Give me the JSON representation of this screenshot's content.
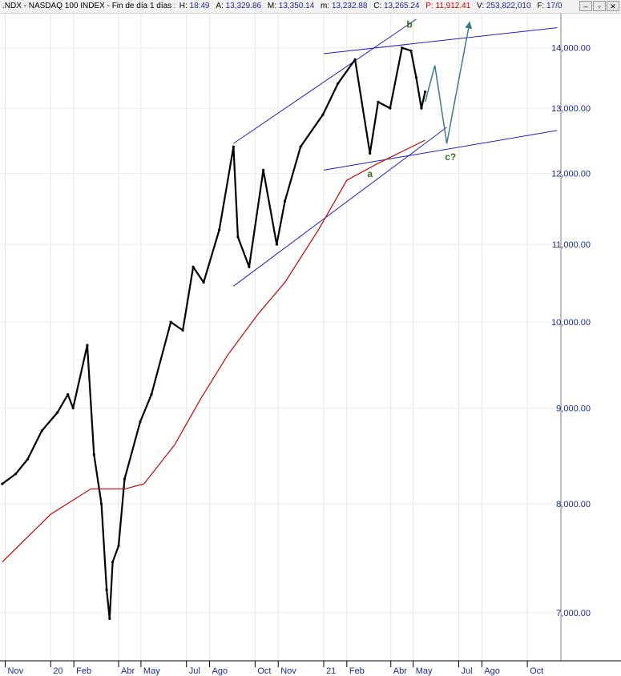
{
  "header": {
    "title": ".NDX - NASDAQ 100 INDEX - Fin de día 1 días",
    "h_label": "H:",
    "h_value": "18:49",
    "a_label": "A:",
    "a_value": "13,329.86",
    "m1_label": "M:",
    "m1_value": "13,350.14",
    "m2_label": "m:",
    "m2_value": "13,232.88",
    "c_label": "C:",
    "c_value": "13,265.24",
    "p_label": "P:",
    "p_value": "11,912.41",
    "v_label": "V:",
    "v_value": "253,822,010",
    "f_label": "F:",
    "f_value": "17/0",
    "btn_min": "–",
    "btn_max": "▫",
    "btn_close": "✕"
  },
  "colors": {
    "price": "#000000",
    "moving_average": "#cc0000",
    "channel": "#1f1fc8",
    "projection": "#3d7a86",
    "labels": "#1a2a9c",
    "annotation": "#3b6b1e"
  },
  "chart_data": {
    "type": "line",
    "title": "NASDAQ 100 INDEX",
    "xlabel": "",
    "ylabel": "",
    "y_scale": "log",
    "ylim": [
      6600,
      14600
    ],
    "y_ticks": [
      "7,000.00",
      "8,000.00",
      "9,000.00",
      "10,000.00",
      "11,000.00",
      "12,000.00",
      "13,000.00",
      "14,000.00"
    ],
    "y_tick_values": [
      7000,
      8000,
      9000,
      10000,
      11000,
      12000,
      13000,
      14000
    ],
    "x_ticks": [
      "Nov",
      "20",
      "Feb",
      "Abr",
      "May",
      "Jul",
      "Ago",
      "Oct",
      "Nov",
      "21",
      "Feb",
      "Abr",
      "May",
      "Jul",
      "Ago",
      "Oct"
    ],
    "x_tick_dates": [
      "2019-11-01",
      "2020-01-01",
      "2020-02-01",
      "2020-04-01",
      "2020-05-01",
      "2020-07-01",
      "2020-08-01",
      "2020-10-01",
      "2020-11-01",
      "2021-01-01",
      "2021-02-01",
      "2021-04-01",
      "2021-05-01",
      "2021-07-01",
      "2021-08-01",
      "2021-10-01"
    ],
    "x_range": [
      "2019-10-25",
      "2021-11-15"
    ],
    "series": [
      {
        "name": "Price",
        "kind": "close",
        "points": [
          [
            "2019-10-28",
            8200
          ],
          [
            "2019-11-15",
            8300
          ],
          [
            "2019-12-01",
            8450
          ],
          [
            "2019-12-20",
            8750
          ],
          [
            "2020-01-10",
            8950
          ],
          [
            "2020-01-24",
            9150
          ],
          [
            "2020-01-31",
            9000
          ],
          [
            "2020-02-19",
            9720
          ],
          [
            "2020-02-28",
            8500
          ],
          [
            "2020-03-09",
            8000
          ],
          [
            "2020-03-16",
            7200
          ],
          [
            "2020-03-20",
            6950
          ],
          [
            "2020-03-24",
            7450
          ],
          [
            "2020-04-01",
            7600
          ],
          [
            "2020-04-09",
            8250
          ],
          [
            "2020-04-30",
            8850
          ],
          [
            "2020-05-15",
            9150
          ],
          [
            "2020-06-10",
            10000
          ],
          [
            "2020-06-26",
            9900
          ],
          [
            "2020-07-10",
            10700
          ],
          [
            "2020-07-24",
            10500
          ],
          [
            "2020-08-14",
            11200
          ],
          [
            "2020-09-02",
            12400
          ],
          [
            "2020-09-08",
            11100
          ],
          [
            "2020-09-23",
            10700
          ],
          [
            "2020-10-12",
            12050
          ],
          [
            "2020-10-30",
            11000
          ],
          [
            "2020-11-10",
            11600
          ],
          [
            "2020-12-01",
            12400
          ],
          [
            "2020-12-31",
            12900
          ],
          [
            "2021-01-20",
            13400
          ],
          [
            "2021-02-12",
            13800
          ],
          [
            "2021-03-04",
            12300
          ],
          [
            "2021-03-15",
            13100
          ],
          [
            "2021-03-31",
            13000
          ],
          [
            "2021-04-16",
            14000
          ],
          [
            "2021-04-28",
            13950
          ],
          [
            "2021-05-05",
            13500
          ],
          [
            "2021-05-12",
            13000
          ],
          [
            "2021-05-17",
            13265
          ]
        ]
      },
      {
        "name": "Moving average",
        "kind": "ma",
        "points": [
          [
            "2019-10-28",
            7450
          ],
          [
            "2020-01-01",
            7900
          ],
          [
            "2020-02-24",
            8150
          ],
          [
            "2020-04-10",
            8150
          ],
          [
            "2020-05-05",
            8200
          ],
          [
            "2020-06-15",
            8600
          ],
          [
            "2020-07-20",
            9100
          ],
          [
            "2020-08-25",
            9600
          ],
          [
            "2020-10-05",
            10100
          ],
          [
            "2020-11-10",
            10500
          ],
          [
            "2020-12-25",
            11200
          ],
          [
            "2021-02-01",
            11900
          ],
          [
            "2021-03-15",
            12150
          ],
          [
            "2021-05-17",
            12500
          ]
        ]
      }
    ],
    "trendlines": [
      {
        "name": "channel-upper",
        "from": [
          "2020-09-02",
          12450
        ],
        "to": [
          "2021-05-05",
          14500
        ]
      },
      {
        "name": "channel-lower",
        "from": [
          "2020-09-02",
          10450
        ],
        "to": [
          "2021-06-15",
          12700
        ]
      },
      {
        "name": "triangle-upper",
        "from": [
          "2021-01-01",
          13900
        ],
        "to": [
          "2021-11-10",
          14350
        ]
      },
      {
        "name": "triangle-lower",
        "from": [
          "2021-01-01",
          12050
        ],
        "to": [
          "2021-11-10",
          12650
        ]
      }
    ],
    "projection": [
      [
        "2021-05-17",
        13100
      ],
      [
        "2021-05-30",
        13700
      ],
      [
        "2021-06-15",
        12450
      ],
      [
        "2021-07-15",
        14400
      ]
    ],
    "annotations": [
      {
        "text": "a",
        "date": "2021-03-04",
        "value": 11950
      },
      {
        "text": "b",
        "date": "2021-04-26",
        "value": 14350
      },
      {
        "text": "c?",
        "date": "2021-06-20",
        "value": 12200
      }
    ]
  }
}
